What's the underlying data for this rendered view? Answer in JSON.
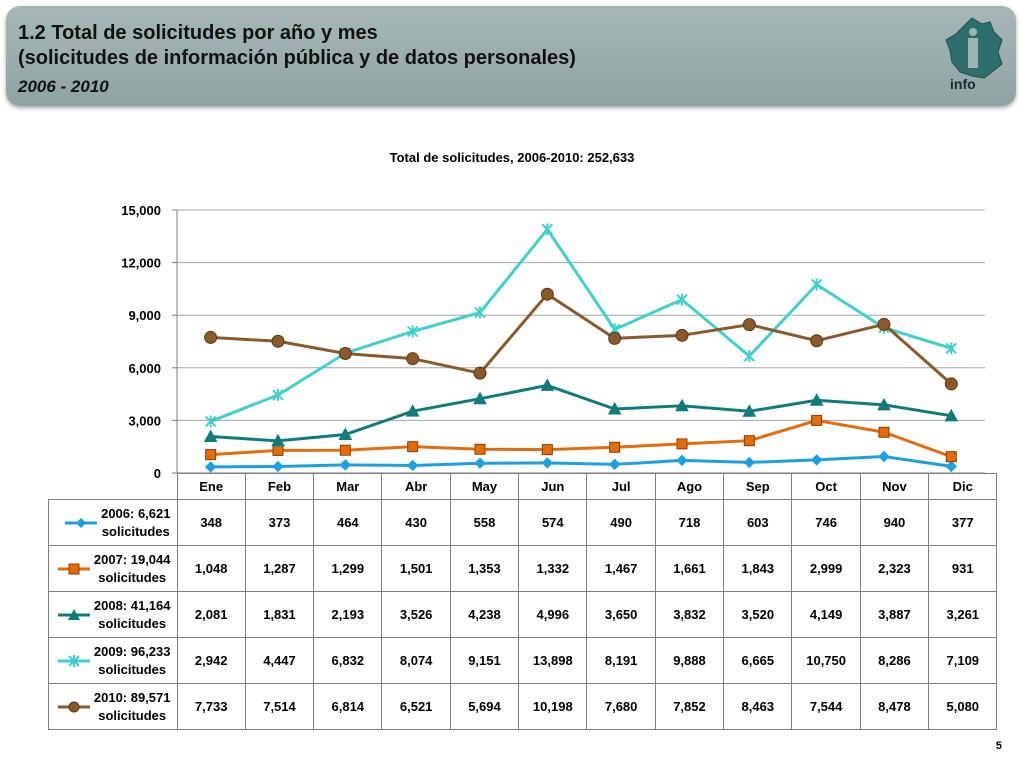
{
  "header": {
    "title_line1": "1.2 Total de solicitudes por año y mes",
    "title_line2": "(solicitudes de información pública y de datos personales)",
    "subtitle": "2006 - 2010",
    "logo_text": "info",
    "logo_icon": "map-silhouette-logo"
  },
  "page_number": "5",
  "chart_data": {
    "type": "line",
    "title": "Total de solicitudes, 2006-2010: 252,633",
    "xlabel": "",
    "ylabel": "",
    "ylim": [
      0,
      15000
    ],
    "yticks": [
      0,
      3000,
      6000,
      9000,
      12000,
      15000
    ],
    "ytick_labels": [
      "0",
      "3,000",
      "6,000",
      "9,000",
      "12,000",
      "15,000"
    ],
    "grid": true,
    "legend_placement": "data-table-left",
    "categories": [
      "Ene",
      "Feb",
      "Mar",
      "Abr",
      "May",
      "Jun",
      "Jul",
      "Ago",
      "Sep",
      "Oct",
      "Nov",
      "Dic"
    ],
    "series": [
      {
        "name": "2006: 6,621",
        "name_line2": "solicitudes",
        "color": "#1ba1e2",
        "marker": "diamond",
        "values": [
          348,
          373,
          464,
          430,
          558,
          574,
          490,
          718,
          603,
          746,
          940,
          377
        ],
        "labels": [
          "348",
          "373",
          "464",
          "430",
          "558",
          "574",
          "490",
          "718",
          "603",
          "746",
          "940",
          "377"
        ]
      },
      {
        "name": "2007: 19,044",
        "name_line2": "solicitudes",
        "color": "#e46c0a",
        "marker": "square",
        "values": [
          1048,
          1287,
          1299,
          1501,
          1353,
          1332,
          1467,
          1661,
          1843,
          2999,
          2323,
          931
        ],
        "labels": [
          "1,048",
          "1,287",
          "1,299",
          "1,501",
          "1,353",
          "1,332",
          "1,467",
          "1,661",
          "1,843",
          "2,999",
          "2,323",
          "931"
        ]
      },
      {
        "name": "2008: 41,164",
        "name_line2": "solicitudes",
        "color": "#0f7b7b",
        "marker": "triangle",
        "values": [
          2081,
          1831,
          2193,
          3526,
          4238,
          4996,
          3650,
          3832,
          3520,
          4149,
          3887,
          3261
        ],
        "labels": [
          "2,081",
          "1,831",
          "2,193",
          "3,526",
          "4,238",
          "4,996",
          "3,650",
          "3,832",
          "3,520",
          "4,149",
          "3,887",
          "3,261"
        ]
      },
      {
        "name": "2009: 96,233",
        "name_line2": "solicitudes",
        "color": "#3fd0cf",
        "marker": "star",
        "values": [
          2942,
          4447,
          6832,
          8074,
          9151,
          13898,
          8191,
          9888,
          6665,
          10750,
          8286,
          7109
        ],
        "labels": [
          "2,942",
          "4,447",
          "6,832",
          "8,074",
          "9,151",
          "13,898",
          "8,191",
          "9,888",
          "6,665",
          "10,750",
          "8,286",
          "7,109"
        ]
      },
      {
        "name": "2010: 89,571",
        "name_line2": "solicitudes",
        "color": "#8b5a2b",
        "marker": "circle",
        "values": [
          7733,
          7514,
          6814,
          6521,
          5694,
          10198,
          7680,
          7852,
          8463,
          7544,
          8478,
          5080
        ],
        "labels": [
          "7,733",
          "7,514",
          "6,814",
          "6,521",
          "5,694",
          "10,198",
          "7,680",
          "7,852",
          "8,463",
          "7,544",
          "8,478",
          "5,080"
        ]
      }
    ]
  }
}
